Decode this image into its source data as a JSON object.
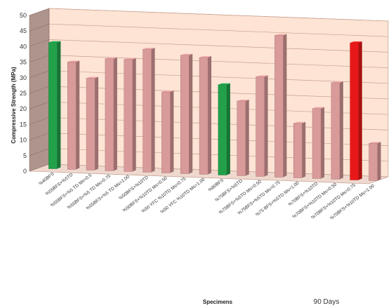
{
  "chart_data": {
    "type": "bar",
    "title": "",
    "xlabel": "Specimens",
    "ylabel": "Compressive Strength (MPa)",
    "annotation": "90 Days",
    "ylim": [
      0,
      50
    ],
    "yticks": [
      0,
      5,
      10,
      15,
      20,
      25,
      30,
      35,
      40,
      45,
      50
    ],
    "grid": true,
    "categories": [
      "%40BFS",
      "%55BFS+%5TD",
      "%55BFS+%5 TD Ms=0.5",
      "%55BFS+%5 TD Ms=0.75",
      "%55BFS+%5 TD Ms=1.00",
      "%50BFS+%10TD",
      "%50BFS+%10TD Ms=0.50",
      "%50 YFC %10TD Ms=0.75",
      "%50 YFC %10TD Ms=1.00",
      "%80BFS",
      "%75BFS+%5TD",
      "%75BFS+%5TD Ms=0.50",
      "%75BFS+%5TD Ms=0.75",
      "%75 BFS+%5TD Ms=1.00",
      "%70BFS+%10TD",
      "%70BFS+%10TD Ms=0.50",
      "%70BFS+%10TD Ms=0.75",
      "%70BFS+%10TD Ms=1.00"
    ],
    "values": [
      40.5,
      34.5,
      29.5,
      36,
      36,
      39.5,
      26,
      38,
      37.5,
      29,
      24,
      32,
      45.5,
      17.5,
      22.5,
      31,
      44,
      12
    ],
    "colors": [
      "#22a04a",
      "#d99a9a",
      "#d99a9a",
      "#d99a9a",
      "#d99a9a",
      "#d99a9a",
      "#d99a9a",
      "#d99a9a",
      "#d99a9a",
      "#22a04a",
      "#d99a9a",
      "#d99a9a",
      "#d99a9a",
      "#d99a9a",
      "#d99a9a",
      "#d99a9a",
      "#e81818",
      "#d99a9a"
    ],
    "plot_background": "#fde4d4",
    "grid_color": "#c8a090"
  }
}
